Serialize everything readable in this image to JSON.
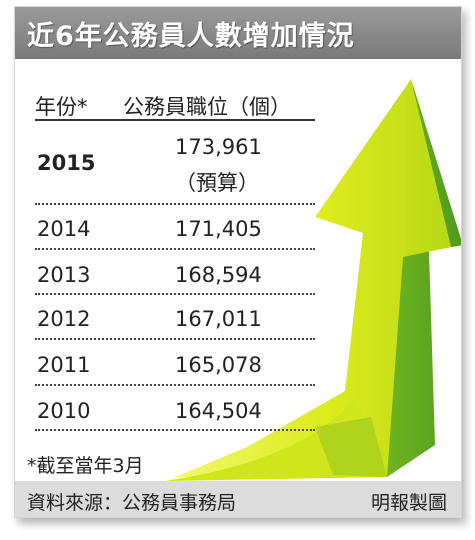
{
  "title": "近6年公務員人數增加情況",
  "chart_data": {
    "type": "table",
    "columns": [
      "年份*",
      "公務員職位（個）"
    ],
    "rows": [
      {
        "year": "2015",
        "value": "173,961",
        "note": "（預算）",
        "highlight": true
      },
      {
        "year": "2014",
        "value": "171,405"
      },
      {
        "year": "2013",
        "value": "168,594"
      },
      {
        "year": "2012",
        "value": "167,011"
      },
      {
        "year": "2011",
        "value": "165,078"
      },
      {
        "year": "2010",
        "value": "164,504"
      }
    ]
  },
  "footnote": "*截至當年3月",
  "source": "資料來源：公務員事務局",
  "credit": "明報製圖",
  "colors": {
    "title_bg": "#8a8a8a",
    "arrow_light": "#e6f21a",
    "arrow_mid": "#b6d81a",
    "arrow_dark": "#5aa020"
  }
}
